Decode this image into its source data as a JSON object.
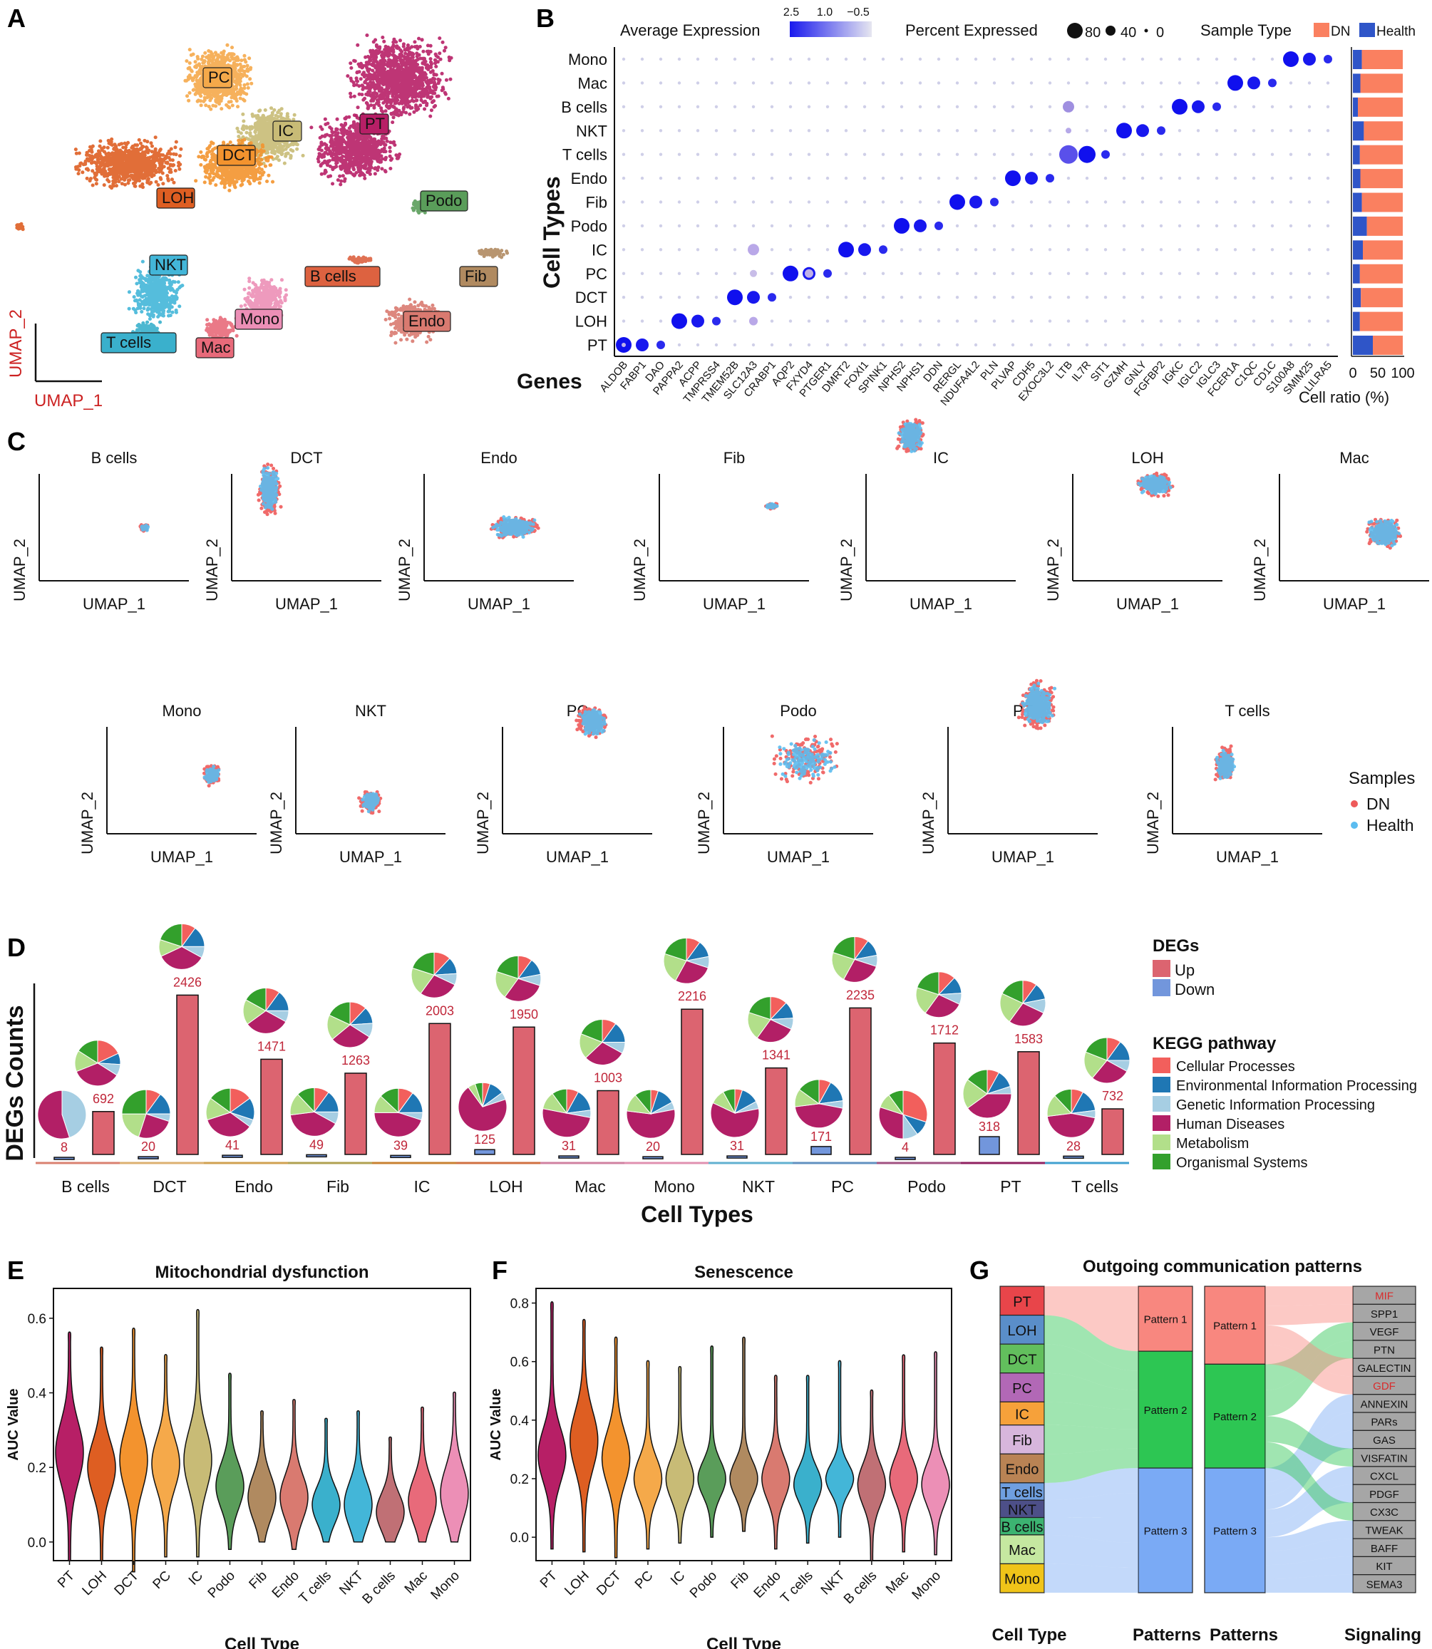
{
  "panels": [
    "A",
    "B",
    "C",
    "D",
    "E",
    "F",
    "G"
  ],
  "panel_a": {
    "clusters": [
      {
        "label": "PC",
        "color": "#f5a94a"
      },
      {
        "label": "IC",
        "color": "#c8bb76"
      },
      {
        "label": "DCT",
        "color": "#f3932e"
      },
      {
        "label": "PT",
        "color": "#b71f66"
      },
      {
        "label": "LOH",
        "color": "#de5e22"
      },
      {
        "label": "Podo",
        "color": "#5a9d5a"
      },
      {
        "label": "NKT",
        "color": "#43b6d8"
      },
      {
        "label": "B cells",
        "color": "#dd6240"
      },
      {
        "label": "Fib",
        "color": "#b08a60"
      },
      {
        "label": "Mono",
        "color": "#ec8fb6"
      },
      {
        "label": "Mac",
        "color": "#e86a7a"
      },
      {
        "label": "Endo",
        "color": "#d97a70"
      },
      {
        "label": "T cells",
        "color": "#3ab0cc"
      }
    ],
    "axis_x": "UMAP_1",
    "axis_y": "UMAP_2",
    "axis_color": "#cc2222"
  },
  "panel_b": {
    "legend_avg_title": "Average Expression",
    "legend_avg_ticks": [
      "2.5",
      "1.0",
      "−0.5"
    ],
    "legend_pct_title": "Percent Expressed",
    "legend_pct_items": [
      "80",
      "40",
      "0"
    ],
    "legend_sample_title": "Sample Type",
    "legend_sample_items": [
      {
        "label": "DN",
        "color": "#fa8060"
      },
      {
        "label": "Health",
        "color": "#2f55c8"
      }
    ],
    "ylabel": "Cell Types",
    "xlabel": "Genes",
    "cell_types": [
      "Mono",
      "Mac",
      "B cells",
      "NKT",
      "T cells",
      "Endo",
      "Fib",
      "Podo",
      "IC",
      "PC",
      "DCT",
      "LOH",
      "PT"
    ],
    "genes": [
      "ALDOB",
      "FABP1",
      "DAO",
      "PAPPA2",
      "ACPP",
      "TMPRSS4",
      "TMEM52B",
      "SLC12A3",
      "CRABP1",
      "AQP2",
      "FXYD4",
      "PTGER1",
      "DMRT2",
      "FOXI1",
      "SPINK1",
      "NPHS2",
      "NPHS1",
      "DDN",
      "RERGL",
      "NDUFA4L2",
      "PLN",
      "PLVAP",
      "CDH5",
      "EXOC3L2",
      "LTB",
      "IL7R",
      "SIT1",
      "GZMH",
      "GNLY",
      "FGFBP2",
      "IGKC",
      "IGLC2",
      "IGLC3",
      "FCER1A",
      "C1QC",
      "CD1C",
      "S100A8",
      "SMIM25",
      "LILRA5"
    ],
    "ratio_axis": [
      "0",
      "50",
      "100"
    ],
    "ratio_label": "Cell ratio (%)",
    "health_ratio": [
      0.18,
      0.15,
      0.1,
      0.22,
      0.14,
      0.15,
      0.18,
      0.28,
      0.2,
      0.14,
      0.16,
      0.14,
      0.4
    ]
  },
  "panel_c": {
    "row1": [
      "B cells",
      "DCT",
      "Endo",
      "Fib",
      "IC",
      "LOH",
      "Mac"
    ],
    "row2": [
      "Mono",
      "NKT",
      "PC",
      "Podo",
      "PT",
      "T cells"
    ],
    "axis_x": "UMAP_1",
    "axis_y": "UMAP_2",
    "legend_title": "Samples",
    "legend_items": [
      {
        "label": "DN",
        "color": "#ee5a5a"
      },
      {
        "label": "Health",
        "color": "#5bbcf0"
      }
    ]
  },
  "chart_data": [
    {
      "type": "bar",
      "panel": "D",
      "ylabel": "DEGs Counts",
      "xlabel": "Cell Types",
      "categories": [
        "B cells",
        "DCT",
        "Endo",
        "Fib",
        "IC",
        "LOH",
        "Mac",
        "Mono",
        "NKT",
        "PC",
        "Podo",
        "PT",
        "T cells"
      ],
      "series": [
        {
          "name": "Down",
          "color": "#7296dc",
          "values": [
            8,
            20,
            41,
            49,
            39,
            125,
            31,
            20,
            31,
            171,
            4,
            318,
            28
          ]
        },
        {
          "name": "Up",
          "color": "#dc6470",
          "values": [
            692,
            2426,
            1471,
            1263,
            2003,
            1950,
            1003,
            2216,
            1341,
            2235,
            1712,
            1583,
            732
          ]
        }
      ],
      "ylim": [
        0,
        2600
      ],
      "category_colors": [
        "#d98070",
        "#dcb070",
        "#d0a050",
        "#b0a050",
        "#c88030",
        "#d07040",
        "#d080a0",
        "#e090b0",
        "#60b0d0",
        "#6090c0",
        "#a05080",
        "#902060",
        "#40a0d0"
      ],
      "legend_degs_title": "DEGs",
      "legend_degs_items": [
        {
          "label": "Up",
          "color": "#dc6470"
        },
        {
          "label": "Down",
          "color": "#7296dc"
        }
      ],
      "legend_kegg_title": "KEGG pathway",
      "kegg_items": [
        {
          "label": "Cellular Processes",
          "color": "#f25f5c"
        },
        {
          "label": "Environmental Information Processing",
          "color": "#1f77b4"
        },
        {
          "label": "Genetic Information Processing",
          "color": "#a6cee3"
        },
        {
          "label": "Human Diseases",
          "color": "#b21f66"
        },
        {
          "label": "Metabolism",
          "color": "#b2df8a"
        },
        {
          "label": "Organismal Systems",
          "color": "#33a02c"
        }
      ],
      "pies_down": [
        [
          0,
          0,
          45,
          55,
          0,
          0
        ],
        [
          10,
          15,
          5,
          25,
          20,
          25
        ],
        [
          15,
          15,
          5,
          35,
          15,
          15
        ],
        [
          10,
          15,
          8,
          40,
          15,
          12
        ],
        [
          10,
          15,
          5,
          45,
          12,
          13
        ],
        [
          5,
          10,
          5,
          70,
          5,
          5
        ],
        [
          8,
          15,
          5,
          50,
          12,
          10
        ],
        [
          5,
          12,
          5,
          55,
          12,
          11
        ],
        [
          5,
          12,
          5,
          60,
          10,
          8
        ],
        [
          8,
          15,
          5,
          45,
          12,
          15
        ],
        [
          30,
          10,
          10,
          30,
          10,
          10
        ],
        [
          8,
          12,
          5,
          40,
          20,
          15
        ],
        [
          8,
          15,
          5,
          45,
          15,
          12
        ]
      ],
      "pies_up": [
        [
          18,
          8,
          8,
          35,
          15,
          16
        ],
        [
          10,
          15,
          8,
          35,
          12,
          20
        ],
        [
          10,
          15,
          8,
          32,
          18,
          17
        ],
        [
          12,
          12,
          10,
          30,
          18,
          18
        ],
        [
          12,
          12,
          8,
          28,
          20,
          20
        ],
        [
          10,
          12,
          8,
          30,
          20,
          20
        ],
        [
          10,
          15,
          8,
          30,
          18,
          19
        ],
        [
          10,
          12,
          8,
          28,
          22,
          20
        ],
        [
          12,
          12,
          8,
          28,
          20,
          20
        ],
        [
          10,
          12,
          8,
          28,
          22,
          20
        ],
        [
          12,
          12,
          8,
          28,
          20,
          20
        ],
        [
          10,
          12,
          10,
          28,
          22,
          18
        ],
        [
          10,
          15,
          8,
          28,
          20,
          19
        ]
      ]
    },
    {
      "type": "violin",
      "panel": "E",
      "title": "Mitochondrial dysfunction",
      "ylabel": "AUC Value",
      "xlabel": "Cell Type",
      "ylim": [
        -0.05,
        0.68
      ],
      "yticks": [
        0.0,
        0.2,
        0.4,
        0.6
      ],
      "yticklabels": [
        "0.0",
        "0.2",
        "0.4",
        "0.6"
      ],
      "categories": [
        "PT",
        "LOH",
        "DCT",
        "PC",
        "IC",
        "Podo",
        "Fib",
        "Endo",
        "T cells",
        "NKT",
        "B cells",
        "Mac",
        "Mono"
      ],
      "colors": [
        "#b71f66",
        "#de5e22",
        "#f3932e",
        "#f5a94a",
        "#c8bb76",
        "#5a9d5a",
        "#b08a60",
        "#d97a70",
        "#3ab0cc",
        "#43b6d8",
        "#c07075",
        "#e86a7a",
        "#ec8fb6"
      ],
      "min": [
        -0.05,
        -0.05,
        -0.08,
        -0.04,
        -0.04,
        -0.02,
        0.0,
        -0.02,
        0.0,
        0.0,
        0.0,
        0.0,
        0.0
      ],
      "max": [
        0.56,
        0.52,
        0.57,
        0.5,
        0.62,
        0.45,
        0.35,
        0.38,
        0.33,
        0.35,
        0.28,
        0.36,
        0.4
      ],
      "median": [
        0.24,
        0.2,
        0.22,
        0.21,
        0.22,
        0.15,
        0.12,
        0.12,
        0.1,
        0.1,
        0.08,
        0.11,
        0.13
      ],
      "spread": [
        0.08,
        0.07,
        0.08,
        0.07,
        0.08,
        0.06,
        0.06,
        0.06,
        0.05,
        0.06,
        0.05,
        0.06,
        0.07
      ]
    },
    {
      "type": "violin",
      "panel": "F",
      "title": "Senescence",
      "ylabel": "AUC Value",
      "xlabel": "Cell Type",
      "ylim": [
        -0.08,
        0.85
      ],
      "yticks": [
        0.0,
        0.2,
        0.4,
        0.6,
        0.8
      ],
      "yticklabels": [
        "0.0",
        "0.2",
        "0.4",
        "0.6",
        "0.8"
      ],
      "categories": [
        "PT",
        "LOH",
        "DCT",
        "PC",
        "IC",
        "Podo",
        "Fib",
        "Endo",
        "T cells",
        "NKT",
        "B cells",
        "Mac",
        "Mono"
      ],
      "colors": [
        "#b71f66",
        "#de5e22",
        "#f3932e",
        "#f5a94a",
        "#c8bb76",
        "#5a9d5a",
        "#b08a60",
        "#d97a70",
        "#3ab0cc",
        "#43b6d8",
        "#c07075",
        "#e86a7a",
        "#ec8fb6"
      ],
      "min": [
        -0.04,
        -0.05,
        -0.07,
        -0.04,
        -0.02,
        0.0,
        0.02,
        -0.04,
        -0.02,
        0.0,
        -0.08,
        -0.05,
        -0.06
      ],
      "max": [
        0.8,
        0.74,
        0.68,
        0.6,
        0.58,
        0.65,
        0.68,
        0.55,
        0.55,
        0.6,
        0.5,
        0.62,
        0.63
      ],
      "median": [
        0.28,
        0.33,
        0.27,
        0.2,
        0.2,
        0.2,
        0.2,
        0.2,
        0.18,
        0.2,
        0.18,
        0.2,
        0.18
      ],
      "spread": [
        0.09,
        0.1,
        0.09,
        0.07,
        0.07,
        0.06,
        0.06,
        0.07,
        0.06,
        0.05,
        0.07,
        0.07,
        0.07
      ]
    },
    {
      "type": "alluvial",
      "panel": "G",
      "title": "Outgoing communication patterns",
      "cell_types": [
        {
          "label": "PT",
          "color": "#e8454a",
          "weight": 1.0
        },
        {
          "label": "LOH",
          "color": "#5a8ec9",
          "weight": 1.0
        },
        {
          "label": "DCT",
          "color": "#62bf5d",
          "weight": 1.0
        },
        {
          "label": "PC",
          "color": "#b268b6",
          "weight": 1.0
        },
        {
          "label": "IC",
          "color": "#f6a13a",
          "weight": 0.8
        },
        {
          "label": "Fib",
          "color": "#d7b6dc",
          "weight": 1.0
        },
        {
          "label": "Endo",
          "color": "#b98354",
          "weight": 1.0
        },
        {
          "label": "T cells",
          "color": "#6f9fe0",
          "weight": 0.6
        },
        {
          "label": "NKT",
          "color": "#4d4f88",
          "weight": 0.6
        },
        {
          "label": "B cells",
          "color": "#3cb371",
          "weight": 0.6
        },
        {
          "label": "Mac",
          "color": "#c5e8a0",
          "weight": 1.0
        },
        {
          "label": "Mono",
          "color": "#f0c419",
          "weight": 1.0
        }
      ],
      "patterns": [
        {
          "label": "Pattern 1",
          "color": "#f8877f",
          "weight": 0.25
        },
        {
          "label": "Pattern 2",
          "color": "#2dc653",
          "weight": 0.45
        },
        {
          "label": "Pattern 3",
          "color": "#7aaaf5",
          "weight": 0.48
        }
      ],
      "patterns_right": [
        {
          "label": "Pattern 1",
          "color": "#f8877f",
          "weight": 0.3
        },
        {
          "label": "Pattern 2",
          "color": "#2dc653",
          "weight": 0.4
        },
        {
          "label": "Pattern 3",
          "color": "#7aaaf5",
          "weight": 0.48
        }
      ],
      "signaling": [
        {
          "label": "MIF",
          "highlight": true
        },
        {
          "label": "SPP1"
        },
        {
          "label": "VEGF"
        },
        {
          "label": "PTN"
        },
        {
          "label": "GALECTIN"
        },
        {
          "label": "GDF",
          "highlight": true
        },
        {
          "label": "ANNEXIN"
        },
        {
          "label": "PARs"
        },
        {
          "label": "GAS"
        },
        {
          "label": "VISFATIN"
        },
        {
          "label": "CXCL"
        },
        {
          "label": "PDGF"
        },
        {
          "label": "CX3C"
        },
        {
          "label": "TWEAK"
        },
        {
          "label": "BAFF"
        },
        {
          "label": "KIT"
        },
        {
          "label": "SEMA3"
        }
      ],
      "cell_pattern": [
        1,
        2,
        2,
        2,
        2,
        2,
        2,
        3,
        3,
        3,
        3,
        3
      ],
      "signal_pattern": [
        1,
        1,
        2,
        2,
        1,
        1,
        3,
        3,
        3,
        2,
        3,
        3,
        2,
        3,
        3,
        3,
        3
      ],
      "col_labels": [
        "Cell Type",
        "Patterns",
        "Patterns",
        "Signaling"
      ]
    }
  ]
}
